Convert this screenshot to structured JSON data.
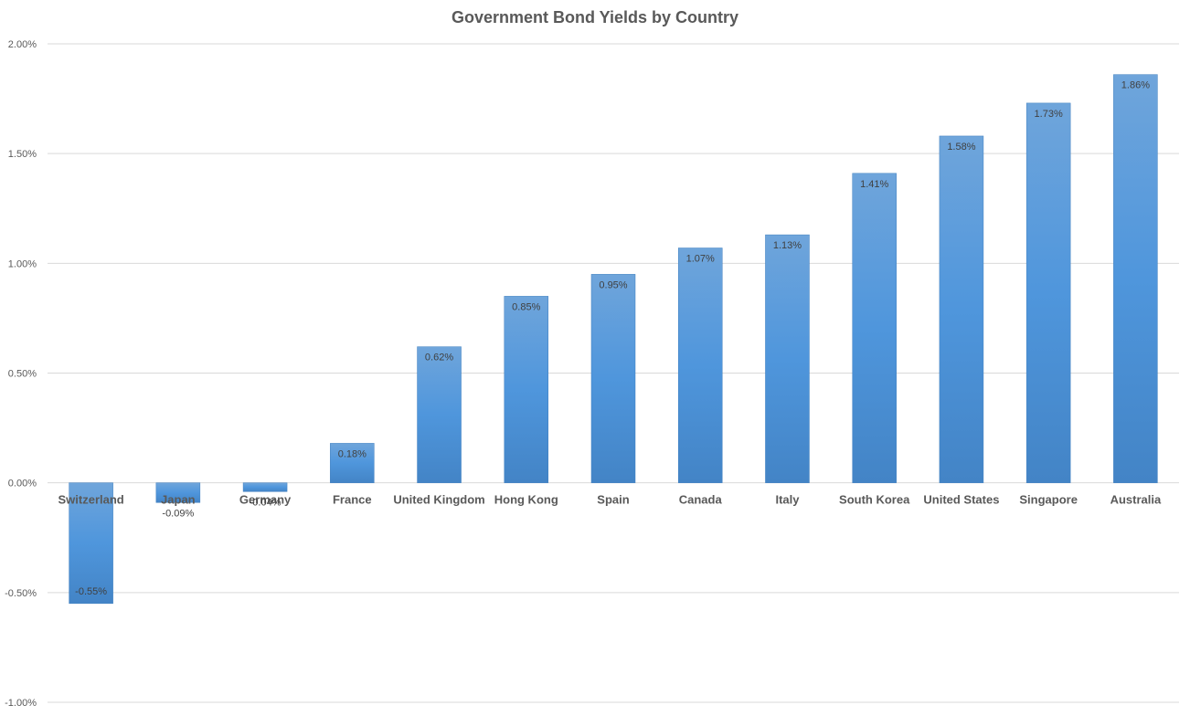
{
  "chart_data": {
    "type": "bar",
    "title": "Government Bond Yields by Country",
    "xlabel": "",
    "ylabel": "",
    "categories": [
      "Switzerland",
      "Japan",
      "Germany",
      "France",
      "United Kingdom",
      "Hong Kong",
      "Spain",
      "Canada",
      "Italy",
      "South Korea",
      "United States",
      "Singapore",
      "Australia"
    ],
    "values": [
      -0.55,
      -0.09,
      -0.04,
      0.18,
      0.62,
      0.85,
      0.95,
      1.07,
      1.13,
      1.41,
      1.58,
      1.73,
      1.86
    ],
    "data_labels": [
      "-0.55%",
      "-0.09%",
      "-0.04%",
      "0.18%",
      "0.62%",
      "0.85%",
      "0.95%",
      "1.07%",
      "1.13%",
      "1.41%",
      "1.58%",
      "1.73%",
      "1.86%"
    ],
    "yticks": [
      2.0,
      1.5,
      1.0,
      0.5,
      0.0,
      -0.5,
      -1.0
    ],
    "ytick_labels": [
      "2.00%",
      "1.50%",
      "1.00%",
      "0.50%",
      "0.00%",
      "-0.50%",
      "-1.00%"
    ],
    "ylim": [
      -1.0,
      2.0
    ],
    "grid": true,
    "legend": "none",
    "bar_color": "#5b9bd5"
  }
}
